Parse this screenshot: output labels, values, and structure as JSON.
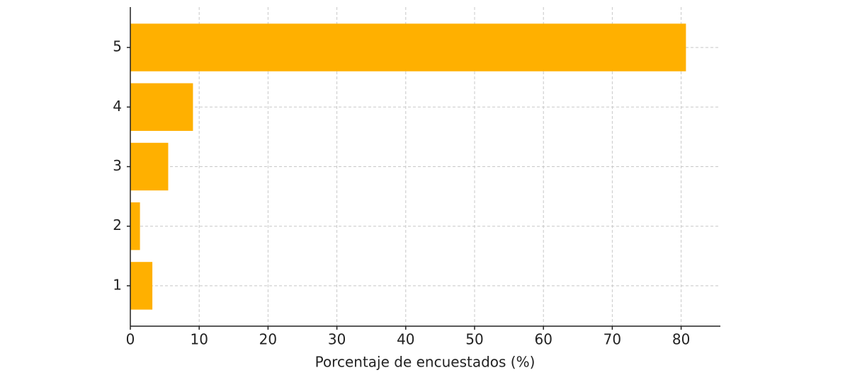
{
  "chart_data": {
    "type": "barh",
    "x_label": "Porcentaje de encuestados (%)",
    "categories": [
      "1",
      "2",
      "3",
      "4",
      "5"
    ],
    "values": [
      3.2,
      1.4,
      5.5,
      9.1,
      80.7
    ],
    "color": "#ffb000",
    "xlim": [
      0,
      85.7
    ],
    "xticks": [
      0,
      10,
      20,
      30,
      40,
      50,
      60,
      70,
      80
    ],
    "grid": true
  }
}
